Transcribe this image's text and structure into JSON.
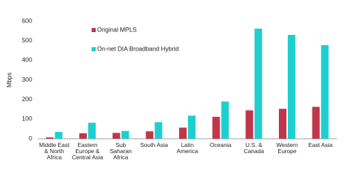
{
  "chart_data": {
    "type": "bar",
    "y_label": "Mbps",
    "categories": [
      "Middle East & North Africa",
      "Eastern Europe & Central Asia",
      "Sub Saharan Africa",
      "South Asia",
      "Latin America",
      "Oceania",
      "U.S. & Canada",
      "Western Europe",
      "East Asia"
    ],
    "series": [
      {
        "name": "Original MPLS",
        "color": "#c0364b",
        "values": [
          7,
          28,
          30,
          38,
          57,
          112,
          145,
          153,
          163
        ]
      },
      {
        "name": "On-net DIA Broadband Hybrid",
        "color": "#1fcfcf",
        "values": [
          35,
          82,
          40,
          85,
          118,
          190,
          562,
          530,
          478
        ]
      }
    ],
    "ylim": [
      0,
      600
    ],
    "yticks": [
      0,
      100,
      200,
      300,
      400,
      500,
      600
    ],
    "grid": false,
    "legend": "top-left"
  }
}
